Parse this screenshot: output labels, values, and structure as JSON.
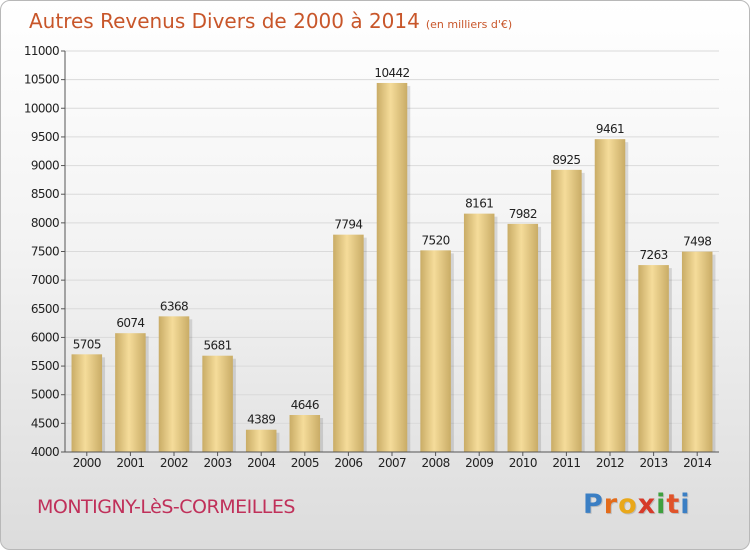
{
  "title": "Autres Revenus Divers de 2000 à 2014",
  "title_unit": "(en milliers d'€)",
  "commune": "MONTIGNY-LèS-CORMEILLES",
  "logo": {
    "text": "Proxiti",
    "letter_colors": [
      "#3b7fc4",
      "#e36b1a",
      "#e9a81a",
      "#d63a2a",
      "#3ea03e",
      "#e0532a",
      "#3b7fc4"
    ]
  },
  "colors": {
    "title": "#c8562a",
    "commune": "#c0305a",
    "bar_light": "#f5dc9a",
    "bar_dark": "#c9ac66",
    "axis_text": "#222222",
    "grid": "#dddddd"
  },
  "chart_data": {
    "type": "bar",
    "categories": [
      "2000",
      "2001",
      "2002",
      "2003",
      "2004",
      "2005",
      "2006",
      "2007",
      "2008",
      "2009",
      "2010",
      "2011",
      "2012",
      "2013",
      "2014"
    ],
    "values": [
      5705,
      6074,
      6368,
      5681,
      4389,
      4646,
      7794,
      10442,
      7520,
      8161,
      7982,
      8925,
      9461,
      7263,
      7498
    ],
    "ylim": [
      4000,
      11000
    ],
    "yticks": [
      4000,
      4500,
      5000,
      5500,
      6000,
      6500,
      7000,
      7500,
      8000,
      8500,
      9000,
      9500,
      10000,
      10500,
      11000
    ],
    "grid": true,
    "data_labels": true
  }
}
